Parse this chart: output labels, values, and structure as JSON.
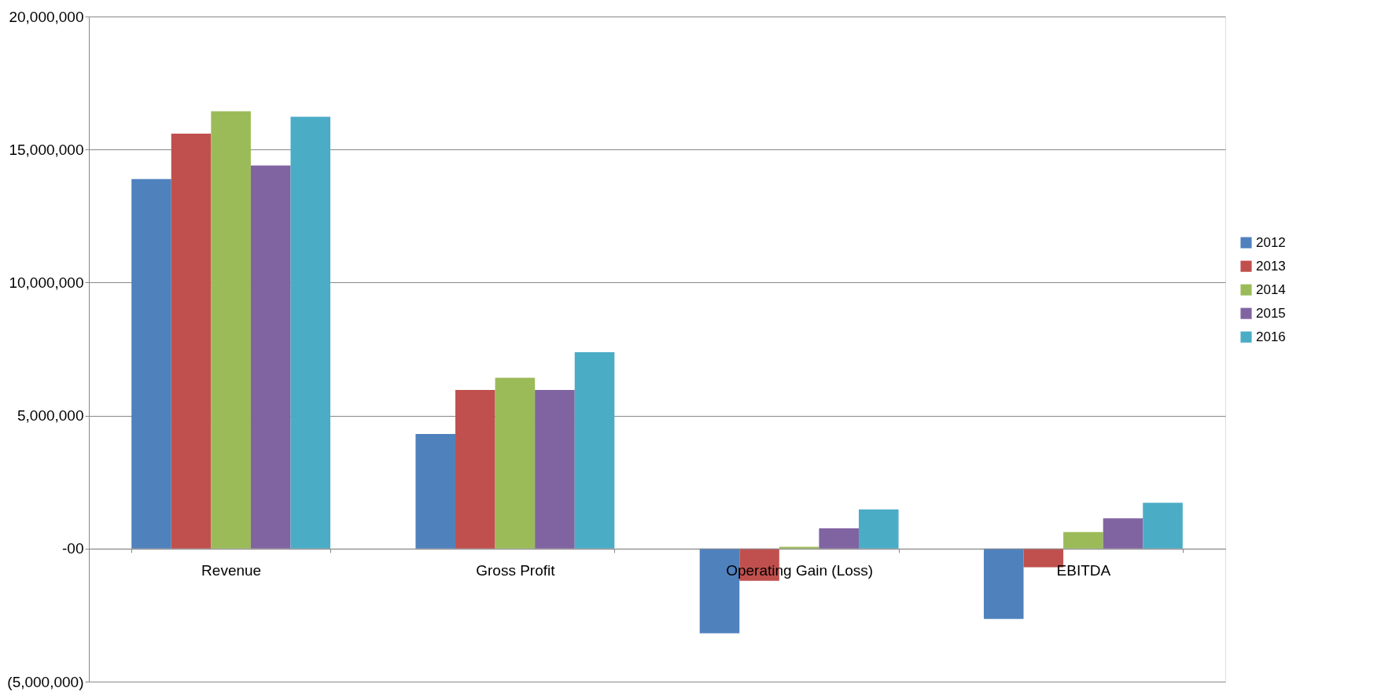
{
  "chart_data": {
    "type": "bar",
    "categories": [
      "Revenue",
      "Gross Profit",
      "Operating Gain (Loss)",
      "EBITDA"
    ],
    "series": [
      {
        "name": "2012",
        "color": "#4f81bd",
        "values": [
          13890000,
          4310000,
          -3180000,
          -2640000
        ]
      },
      {
        "name": "2013",
        "color": "#c0504d",
        "values": [
          15600000,
          5960000,
          -1210000,
          -700000
        ]
      },
      {
        "name": "2014",
        "color": "#9bbb59",
        "values": [
          16440000,
          6420000,
          70000,
          620000
        ]
      },
      {
        "name": "2015",
        "color": "#8064a2",
        "values": [
          14400000,
          5960000,
          760000,
          1140000
        ]
      },
      {
        "name": "2016",
        "color": "#4bacc6",
        "values": [
          16230000,
          7380000,
          1470000,
          1720000
        ]
      }
    ],
    "ylim": [
      -5000000,
      20000000
    ],
    "yticks": [
      {
        "value": -5000000,
        "label": "(5,000,000)"
      },
      {
        "value": 0,
        "label": "-00"
      },
      {
        "value": 5000000,
        "label": "5,000,000"
      },
      {
        "value": 10000000,
        "label": "10,000,000"
      },
      {
        "value": 15000000,
        "label": "15,000,000"
      },
      {
        "value": 20000000,
        "label": "20,000,000"
      }
    ],
    "grid": "y",
    "legend": "right"
  }
}
